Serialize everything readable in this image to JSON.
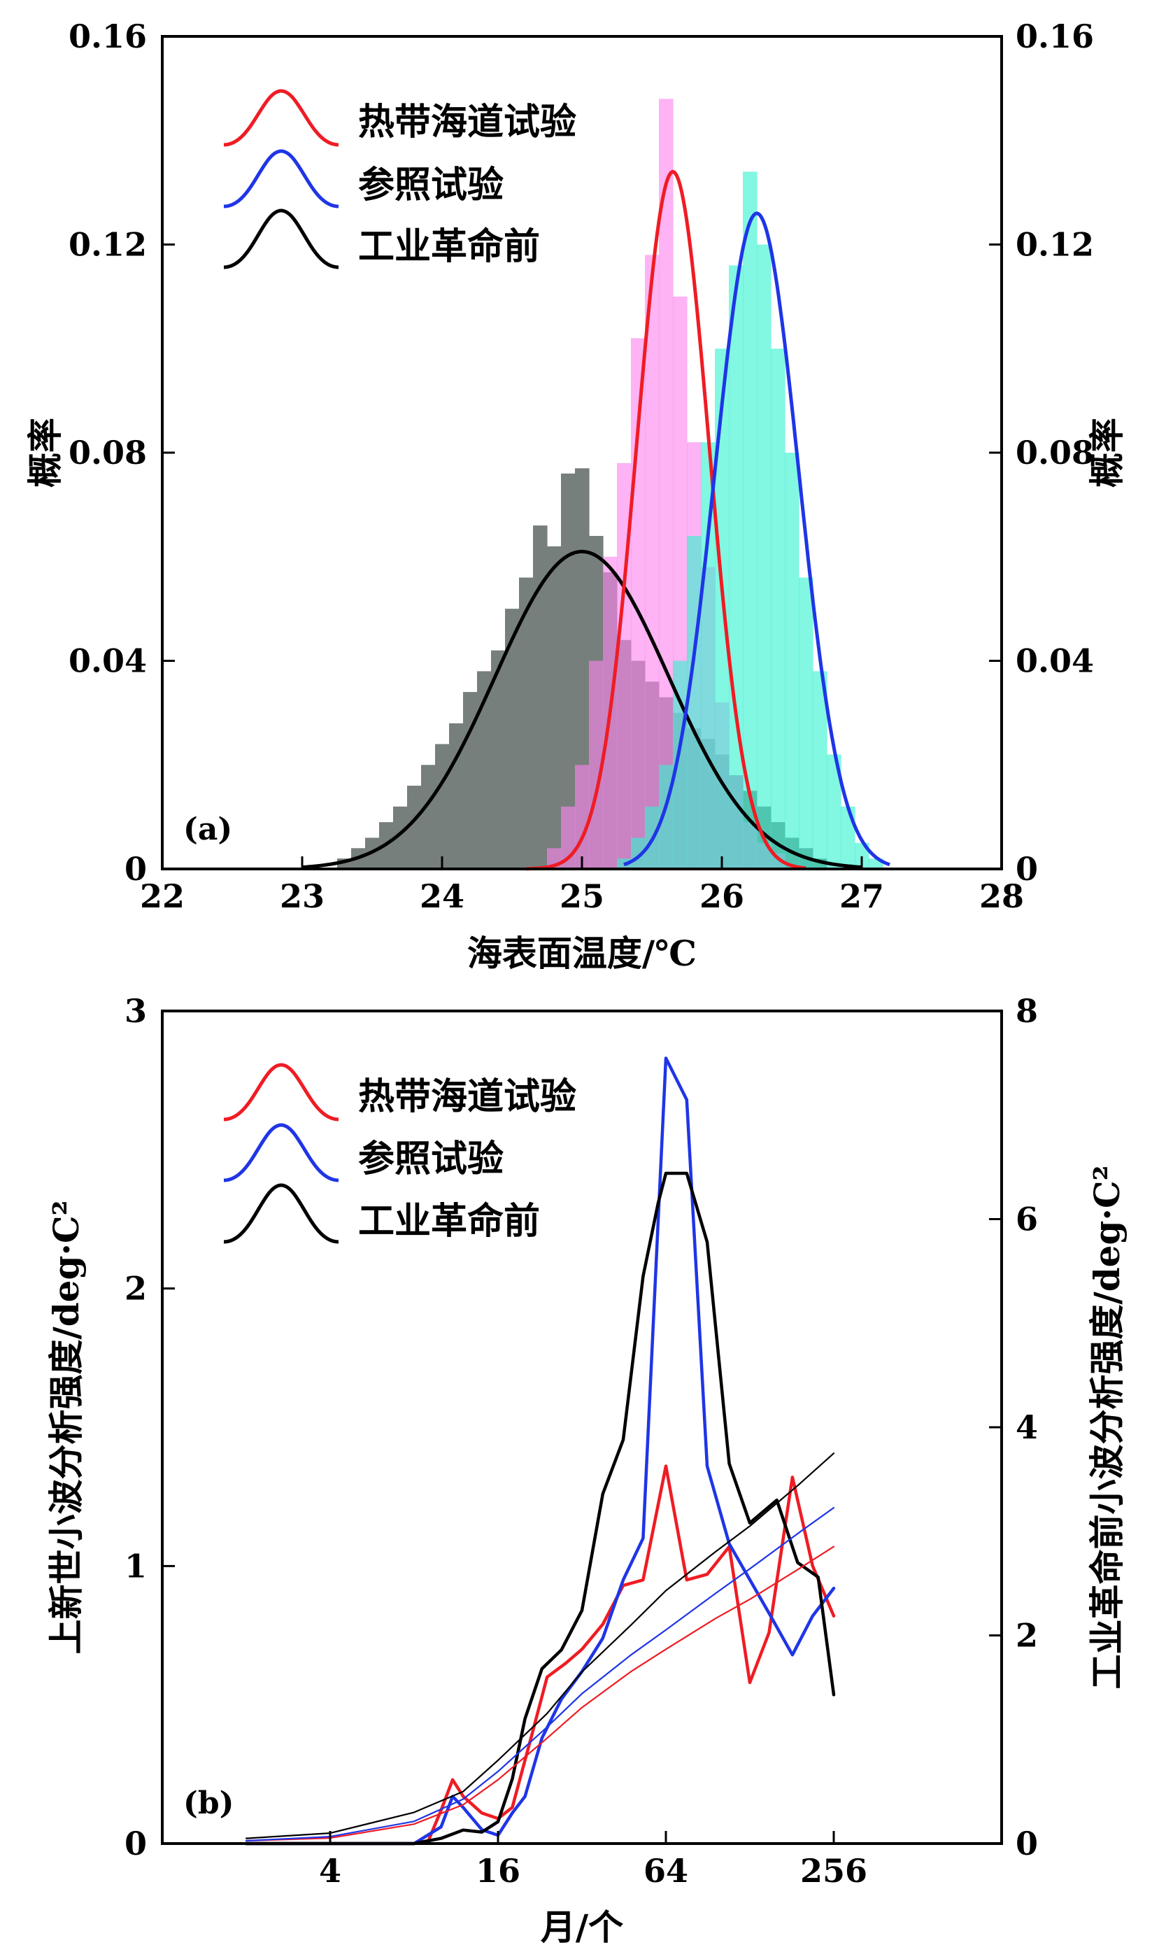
{
  "chart_data": [
    {
      "id": "a",
      "type": "histogram",
      "panel_label": "(a)",
      "xlabel": "海表面温度/℃",
      "ylabel_left": "概率",
      "ylabel_right": "概率",
      "xlim": [
        22,
        28
      ],
      "ylim": [
        0,
        0.16
      ],
      "xticks": [
        "22",
        "23",
        "24",
        "25",
        "26",
        "27",
        "28"
      ],
      "yticks_left": [
        "0",
        "0.04",
        "0.08",
        "0.12",
        "0.16"
      ],
      "yticks_right": [
        "0",
        "0.04",
        "0.08",
        "0.12",
        "0.16"
      ],
      "legend": [
        "热带海道试验",
        "参照试验",
        "工业革命前"
      ],
      "series": [
        {
          "name": "工业革命前",
          "color": "#777f7c",
          "curve_color": "#000000",
          "curve": {
            "mean": 25.0,
            "peak": 0.061,
            "sd": 0.62,
            "from": 23.0,
            "to": 27.0
          },
          "bins": [
            [
              23.3,
              0.002
            ],
            [
              23.4,
              0.004
            ],
            [
              23.5,
              0.006
            ],
            [
              23.6,
              0.009
            ],
            [
              23.7,
              0.012
            ],
            [
              23.8,
              0.016
            ],
            [
              23.9,
              0.02
            ],
            [
              24.0,
              0.024
            ],
            [
              24.1,
              0.028
            ],
            [
              24.2,
              0.034
            ],
            [
              24.3,
              0.038
            ],
            [
              24.4,
              0.042
            ],
            [
              24.5,
              0.05
            ],
            [
              24.6,
              0.056
            ],
            [
              24.7,
              0.066
            ],
            [
              24.8,
              0.062
            ],
            [
              24.9,
              0.076
            ],
            [
              25.0,
              0.077
            ],
            [
              25.1,
              0.064
            ],
            [
              25.2,
              0.057
            ],
            [
              25.3,
              0.044
            ],
            [
              25.4,
              0.04
            ],
            [
              25.5,
              0.036
            ],
            [
              25.6,
              0.033
            ],
            [
              25.7,
              0.03
            ],
            [
              25.8,
              0.027
            ],
            [
              25.9,
              0.025
            ],
            [
              26.0,
              0.022
            ],
            [
              26.1,
              0.018
            ],
            [
              26.2,
              0.015
            ],
            [
              26.3,
              0.012
            ],
            [
              26.4,
              0.009
            ],
            [
              26.5,
              0.006
            ],
            [
              26.6,
              0.004
            ],
            [
              26.7,
              0.002
            ]
          ]
        },
        {
          "name": "热带海道试验",
          "color": "#fb85ee",
          "curve_color": "#ef1c24",
          "curve": {
            "mean": 25.65,
            "peak": 0.134,
            "sd": 0.26,
            "from": 24.6,
            "to": 26.6
          },
          "bins": [
            [
              24.8,
              0.004
            ],
            [
              24.9,
              0.012
            ],
            [
              25.0,
              0.02
            ],
            [
              25.1,
              0.04
            ],
            [
              25.2,
              0.06
            ],
            [
              25.3,
              0.078
            ],
            [
              25.4,
              0.102
            ],
            [
              25.5,
              0.118
            ],
            [
              25.6,
              0.148
            ],
            [
              25.7,
              0.11
            ],
            [
              25.8,
              0.082
            ],
            [
              25.9,
              0.058
            ],
            [
              26.0,
              0.032
            ],
            [
              26.1,
              0.018
            ],
            [
              26.2,
              0.009
            ],
            [
              26.3,
              0.005
            ],
            [
              26.4,
              0.003
            ]
          ]
        },
        {
          "name": "参照试验",
          "color": "#36f2d0",
          "curve_color": "#1f35e6",
          "curve": {
            "mean": 26.25,
            "peak": 0.126,
            "sd": 0.3,
            "from": 25.3,
            "to": 27.2
          },
          "bins": [
            [
              25.3,
              0.002
            ],
            [
              25.4,
              0.006
            ],
            [
              25.5,
              0.012
            ],
            [
              25.6,
              0.02
            ],
            [
              25.7,
              0.04
            ],
            [
              25.8,
              0.064
            ],
            [
              25.9,
              0.082
            ],
            [
              26.0,
              0.1
            ],
            [
              26.1,
              0.116
            ],
            [
              26.2,
              0.134
            ],
            [
              26.3,
              0.12
            ],
            [
              26.4,
              0.1
            ],
            [
              26.5,
              0.08
            ],
            [
              26.6,
              0.056
            ],
            [
              26.7,
              0.038
            ],
            [
              26.8,
              0.022
            ],
            [
              26.9,
              0.012
            ],
            [
              27.0,
              0.005
            ],
            [
              27.1,
              0.002
            ]
          ]
        }
      ]
    },
    {
      "id": "b",
      "type": "line",
      "panel_label": "(b)",
      "xlabel": "月/个",
      "ylabel_left": "上新世小波分析强度/deg·C²",
      "ylabel_right": "工业革命前小波分析强度/deg·C²",
      "xscale": "log2",
      "xlim": [
        1,
        1024
      ],
      "ylim_left": [
        0,
        3
      ],
      "ylim_right": [
        0,
        8
      ],
      "xticks": [
        "4",
        "16",
        "64",
        "256"
      ],
      "yticks_left": [
        "0",
        "1",
        "2",
        "3"
      ],
      "yticks_right": [
        "0",
        "2",
        "4",
        "6",
        "8"
      ],
      "legend": [
        "热带海道试验",
        "参照试验",
        "工业革命前"
      ],
      "series": [
        {
          "name": "热带海道试验 spectrum",
          "axis": "left",
          "color": "#ef1c24",
          "width": 4.5,
          "x": [
            2,
            6,
            8,
            9,
            10,
            11,
            12,
            14,
            16,
            18,
            21,
            24,
            28,
            32,
            38,
            45,
            53,
            64,
            76,
            90,
            108,
            128,
            150,
            182,
            215,
            256
          ],
          "y": [
            0.0,
            0.0,
            0.0,
            0.01,
            0.12,
            0.23,
            0.17,
            0.11,
            0.09,
            0.13,
            0.38,
            0.6,
            0.65,
            0.7,
            0.79,
            0.93,
            0.95,
            1.36,
            0.95,
            0.97,
            1.07,
            0.58,
            0.76,
            1.32,
            1.0,
            0.82
          ]
        },
        {
          "name": "参照试验 spectrum",
          "axis": "left",
          "color": "#1f35e6",
          "width": 4.5,
          "x": [
            2,
            8,
            10,
            11,
            12,
            14,
            16,
            18,
            20,
            23,
            27,
            32,
            38,
            45,
            53,
            64,
            76,
            90,
            108,
            150,
            182,
            215,
            256
          ],
          "y": [
            0.0,
            0.0,
            0.06,
            0.17,
            0.13,
            0.05,
            0.03,
            0.11,
            0.17,
            0.38,
            0.52,
            0.62,
            0.74,
            0.95,
            1.1,
            2.83,
            2.68,
            1.36,
            1.08,
            0.83,
            0.68,
            0.82,
            0.92
          ]
        },
        {
          "name": "工业革命前 spectrum",
          "axis": "right",
          "color": "#000000",
          "width": 4.5,
          "x": [
            2,
            8,
            10,
            12,
            14,
            16,
            18,
            20,
            23,
            27,
            32,
            38,
            45,
            53,
            60,
            64,
            76,
            90,
            108,
            128,
            160,
            190,
            225,
            256
          ],
          "y": [
            0.0,
            0.0,
            0.05,
            0.13,
            0.11,
            0.21,
            0.62,
            1.2,
            1.68,
            1.86,
            2.24,
            3.36,
            3.88,
            5.45,
            6.15,
            6.44,
            6.44,
            5.78,
            3.65,
            3.08,
            3.3,
            2.7,
            2.56,
            1.43
          ]
        },
        {
          "name": "热带海道试验 red-noise",
          "axis": "left",
          "color": "#ef1c24",
          "width": 2.2,
          "x": [
            2,
            4,
            8,
            12,
            16,
            24,
            32,
            48,
            64,
            96,
            128,
            192,
            256
          ],
          "y": [
            0.01,
            0.02,
            0.07,
            0.14,
            0.23,
            0.38,
            0.49,
            0.62,
            0.7,
            0.81,
            0.88,
            0.99,
            1.07
          ]
        },
        {
          "name": "参照试验 red-noise",
          "axis": "left",
          "color": "#1f35e6",
          "width": 2.2,
          "x": [
            2,
            4,
            8,
            12,
            16,
            24,
            32,
            48,
            64,
            96,
            128,
            192,
            256
          ],
          "y": [
            0.01,
            0.025,
            0.08,
            0.16,
            0.26,
            0.42,
            0.54,
            0.68,
            0.77,
            0.9,
            0.99,
            1.12,
            1.21
          ]
        },
        {
          "name": "工业革命前 red-noise",
          "axis": "right",
          "color": "#000000",
          "width": 2.2,
          "x": [
            2,
            4,
            8,
            12,
            16,
            24,
            32,
            48,
            64,
            96,
            128,
            192,
            256
          ],
          "y": [
            0.05,
            0.1,
            0.3,
            0.5,
            0.8,
            1.25,
            1.65,
            2.1,
            2.43,
            2.8,
            3.05,
            3.45,
            3.75
          ]
        }
      ]
    }
  ]
}
